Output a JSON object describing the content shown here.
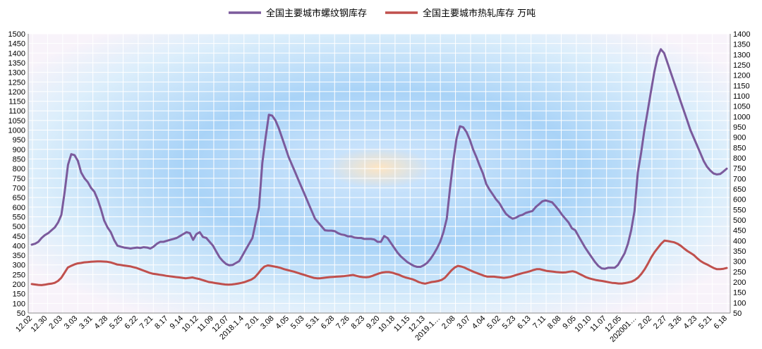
{
  "chart_data": {
    "type": "line",
    "legend_position": "top",
    "grid": true,
    "ylim": [
      50,
      1500
    ],
    "y_ticks": [
      50,
      100,
      150,
      200,
      250,
      300,
      350,
      400,
      450,
      500,
      550,
      600,
      650,
      700,
      750,
      800,
      850,
      900,
      950,
      1000,
      1050,
      1100,
      1150,
      1200,
      1250,
      1300,
      1350,
      1400,
      1450,
      1500
    ],
    "y2lim": [
      50,
      1400
    ],
    "y2_ticks": [
      50,
      100,
      150,
      200,
      250,
      300,
      350,
      400,
      450,
      500,
      550,
      600,
      650,
      700,
      750,
      800,
      850,
      900,
      950,
      1000,
      1050,
      1100,
      1150,
      1200,
      1250,
      1300,
      1350,
      1400
    ],
    "x_tick_labels": [
      "12.02",
      "12.30",
      "2.03",
      "3.03",
      "3.31",
      "4.28",
      "5.25",
      "6.22",
      "7.21",
      "8.17",
      "9.14",
      "10.12",
      "11.09",
      "12.07",
      "2018.1.4",
      "2.01",
      "3.08",
      "4.05",
      "5.03",
      "5.31",
      "6.28",
      "7.26",
      "8.23",
      "9.20",
      "10.18",
      "11.15",
      "12.13",
      "2019.1…",
      "2.08",
      "3.07",
      "4.04",
      "5.02",
      "5.23",
      "6.13",
      "7.11",
      "8.08",
      "9.05",
      "10.10",
      "11.07",
      "12.05",
      "202001…",
      "2.02",
      "2.27",
      "3.26",
      "4.23",
      "5.21",
      "6.18"
    ],
    "series": [
      {
        "name": "全国主要城市螺纹钢库存",
        "color": "#7b5a9c",
        "values": [
          405,
          410,
          420,
          440,
          455,
          465,
          480,
          495,
          520,
          560,
          680,
          820,
          875,
          870,
          840,
          780,
          750,
          730,
          700,
          680,
          640,
          590,
          530,
          495,
          470,
          430,
          400,
          395,
          390,
          388,
          385,
          388,
          390,
          388,
          392,
          390,
          385,
          395,
          410,
          420,
          420,
          425,
          430,
          435,
          440,
          450,
          460,
          470,
          465,
          430,
          460,
          470,
          445,
          440,
          420,
          400,
          370,
          340,
          320,
          305,
          298,
          300,
          310,
          320,
          350,
          380,
          410,
          440,
          520,
          600,
          830,
          960,
          1080,
          1075,
          1050,
          1010,
          960,
          910,
          860,
          820,
          780,
          740,
          700,
          660,
          620,
          580,
          540,
          520,
          500,
          480,
          478,
          478,
          475,
          465,
          458,
          455,
          448,
          448,
          442,
          440,
          440,
          435,
          435,
          435,
          432,
          420,
          420,
          450,
          440,
          415,
          390,
          365,
          345,
          330,
          315,
          305,
          295,
          290,
          290,
          298,
          310,
          330,
          355,
          385,
          420,
          470,
          540,
          700,
          840,
          960,
          1020,
          1015,
          990,
          950,
          900,
          860,
          815,
          775,
          720,
          690,
          665,
          640,
          620,
          590,
          565,
          550,
          540,
          545,
          555,
          560,
          570,
          575,
          580,
          600,
          615,
          630,
          635,
          630,
          625,
          605,
          585,
          560,
          540,
          520,
          490,
          480,
          450,
          420,
          390,
          365,
          340,
          315,
          295,
          282,
          280,
          285,
          285,
          285,
          300,
          330,
          360,
          410,
          480,
          580,
          780,
          880,
          1000,
          1100,
          1200,
          1300,
          1380,
          1420,
          1400,
          1350,
          1300,
          1250,
          1200,
          1150,
          1100,
          1050,
          1000,
          960,
          920,
          880,
          840,
          810,
          790,
          775,
          770,
          772,
          785,
          800
        ]
      },
      {
        "name": "全国主要城市热轧库存 万吨",
        "color": "#c0504d",
        "values": [
          190,
          188,
          186,
          185,
          187,
          190,
          192,
          196,
          205,
          220,
          245,
          270,
          278,
          285,
          290,
          292,
          295,
          296,
          298,
          299,
          300,
          300,
          299,
          298,
          295,
          290,
          285,
          283,
          280,
          278,
          276,
          272,
          268,
          262,
          256,
          250,
          244,
          240,
          238,
          235,
          233,
          230,
          228,
          226,
          224,
          222,
          220,
          218,
          220,
          222,
          218,
          215,
          210,
          205,
          200,
          198,
          195,
          193,
          190,
          188,
          187,
          188,
          190,
          193,
          196,
          200,
          206,
          212,
          222,
          240,
          260,
          275,
          280,
          278,
          275,
          272,
          268,
          262,
          258,
          254,
          250,
          245,
          240,
          235,
          230,
          225,
          220,
          218,
          218,
          220,
          222,
          224,
          225,
          226,
          227,
          228,
          230,
          232,
          234,
          230,
          226,
          224,
          223,
          225,
          230,
          236,
          242,
          246,
          248,
          248,
          245,
          240,
          235,
          228,
          222,
          218,
          214,
          208,
          200,
          195,
          192,
          196,
          200,
          202,
          205,
          210,
          220,
          238,
          256,
          270,
          278,
          275,
          270,
          262,
          255,
          248,
          242,
          236,
          230,
          226,
          226,
          226,
          224,
          222,
          220,
          222,
          225,
          230,
          235,
          240,
          244,
          248,
          252,
          258,
          262,
          262,
          258,
          254,
          252,
          250,
          248,
          247,
          246,
          247,
          250,
          252,
          248,
          240,
          232,
          224,
          218,
          214,
          210,
          207,
          205,
          202,
          199,
          196,
          195,
          193,
          193,
          195,
          198,
          202,
          210,
          222,
          240,
          262,
          290,
          320,
          345,
          365,
          385,
          400,
          398,
          395,
          392,
          385,
          375,
          362,
          350,
          340,
          330,
          315,
          302,
          292,
          285,
          276,
          268,
          262,
          262,
          264,
          268
        ]
      }
    ]
  }
}
